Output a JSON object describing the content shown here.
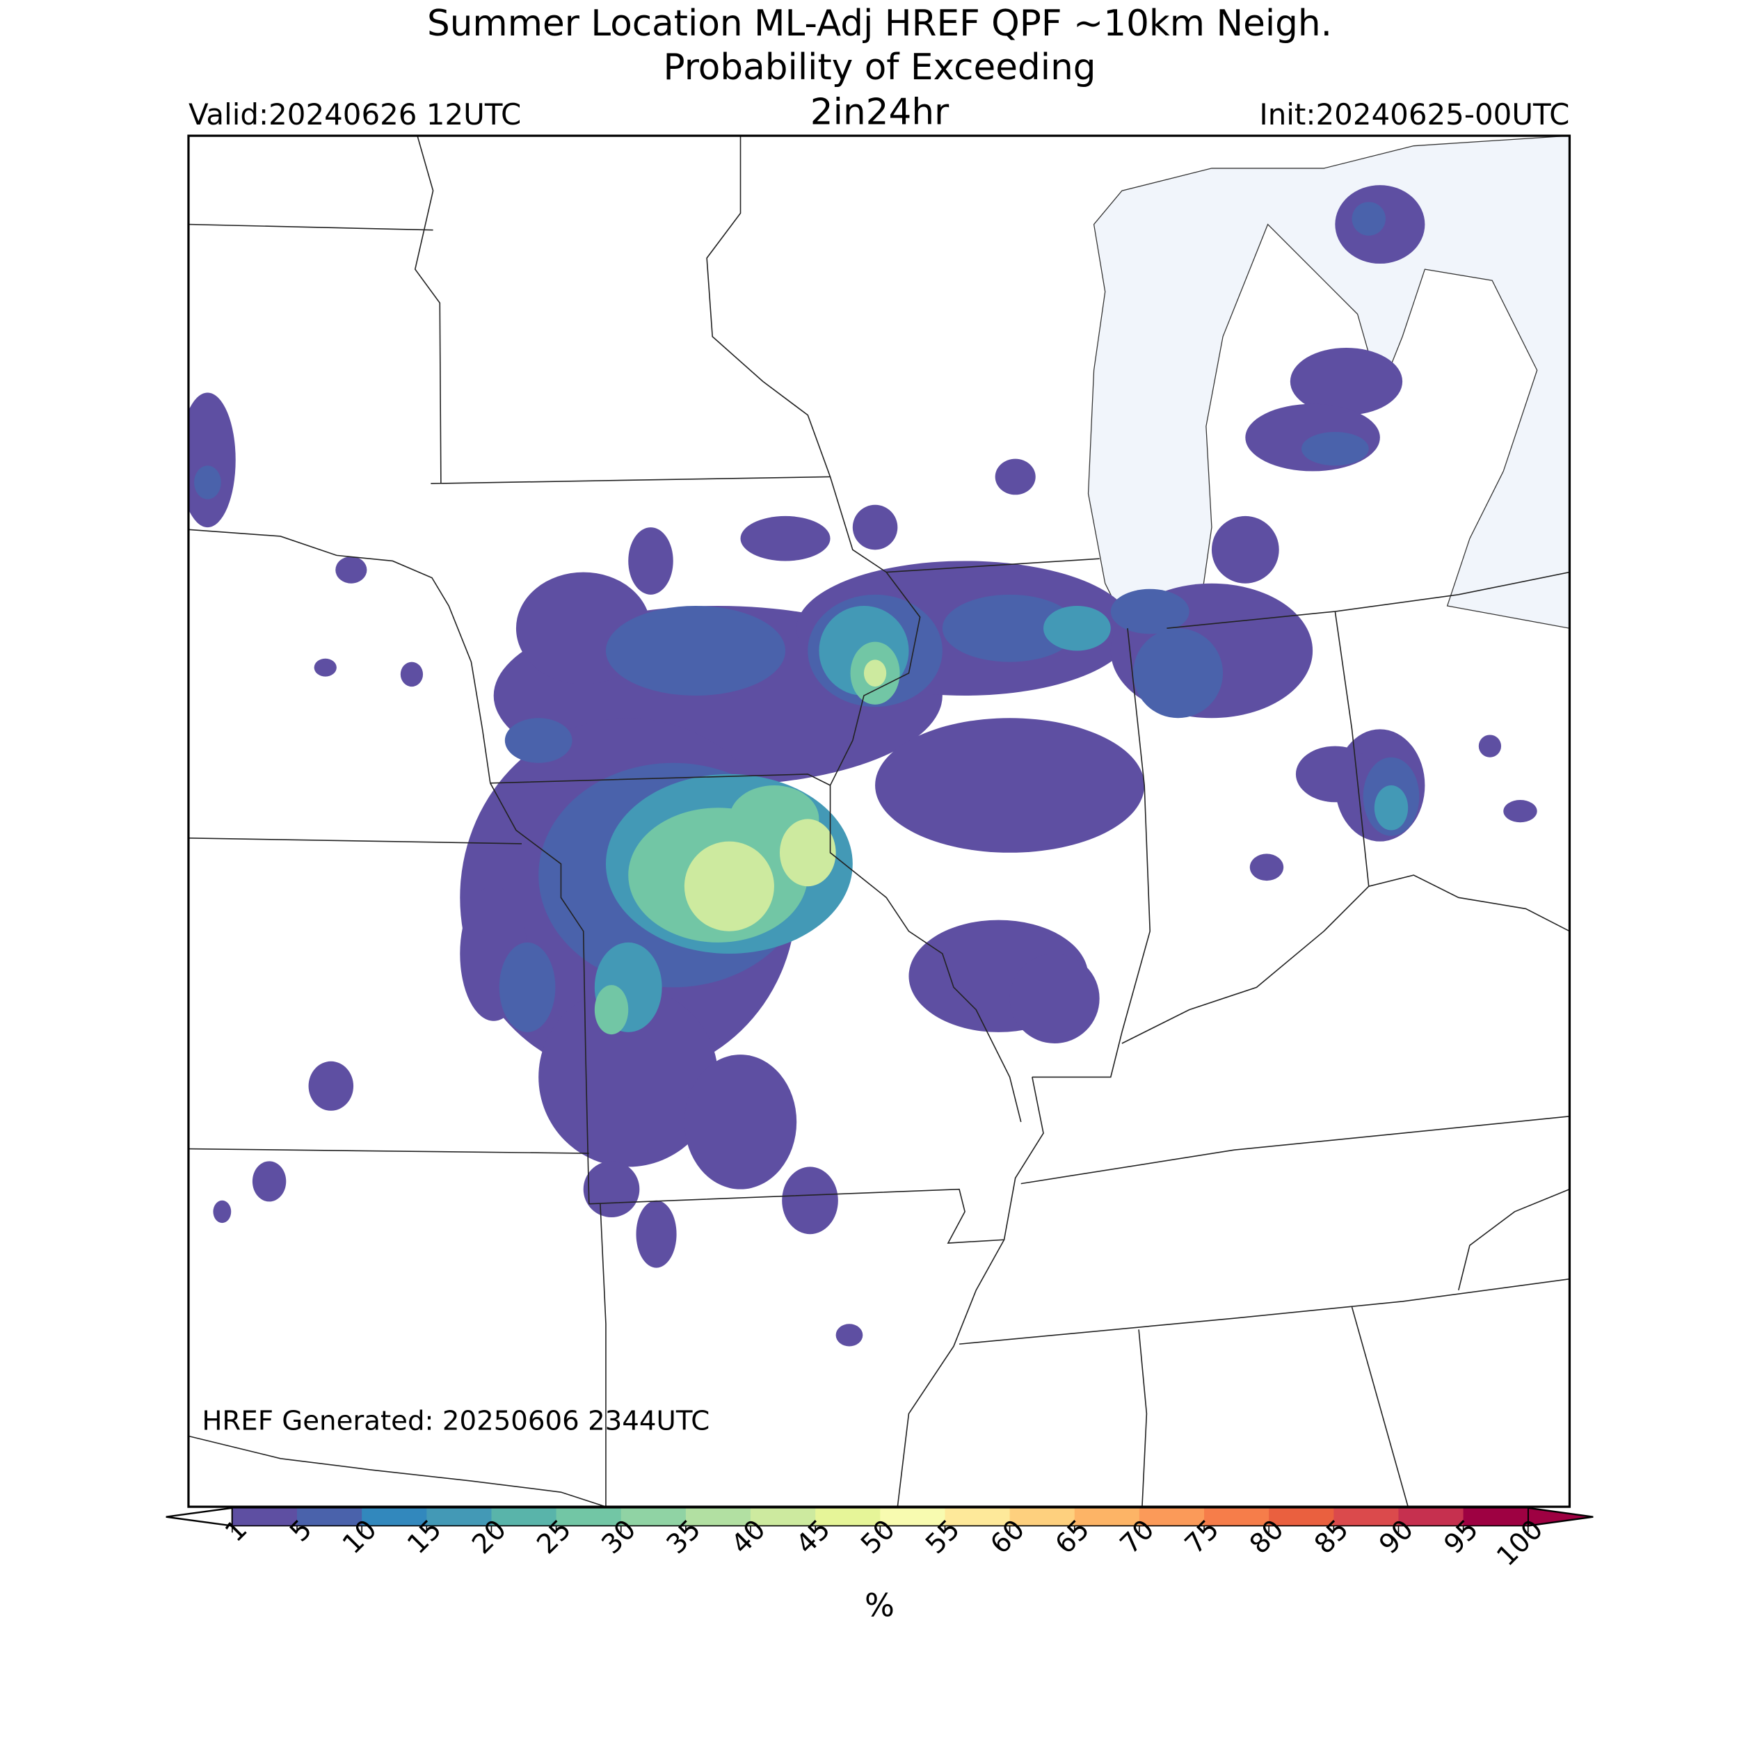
{
  "title": "Summer Location ML-Adj HREF QPF ~10km Neigh.",
  "subtitle": "Probability of Exceeding",
  "threshold": "2in24hr",
  "valid": "Valid:20240626 12UTC",
  "init": "Init:20240625-00UTC",
  "generated": "HREF Generated: 20250606 2344UTC",
  "colorbar": {
    "levels": [
      1,
      5,
      10,
      15,
      20,
      25,
      30,
      35,
      40,
      45,
      50,
      55,
      60,
      65,
      70,
      75,
      80,
      85,
      90,
      95,
      100
    ],
    "colors": [
      "#5e4fa2",
      "#4a62ab",
      "#3288bd",
      "#4399b6",
      "#59b4aa",
      "#72c6a5",
      "#90d3a4",
      "#b2e0a2",
      "#cdea9f",
      "#e6f598",
      "#f8fbb0",
      "#fee99a",
      "#fed07e",
      "#fdb466",
      "#fb9a59",
      "#f67d4a",
      "#ea603f",
      "#db4a4c",
      "#c6304f",
      "#9e0142"
    ],
    "under_color": "#ffffff",
    "over_color": "#9e0142",
    "label": "%"
  }
}
